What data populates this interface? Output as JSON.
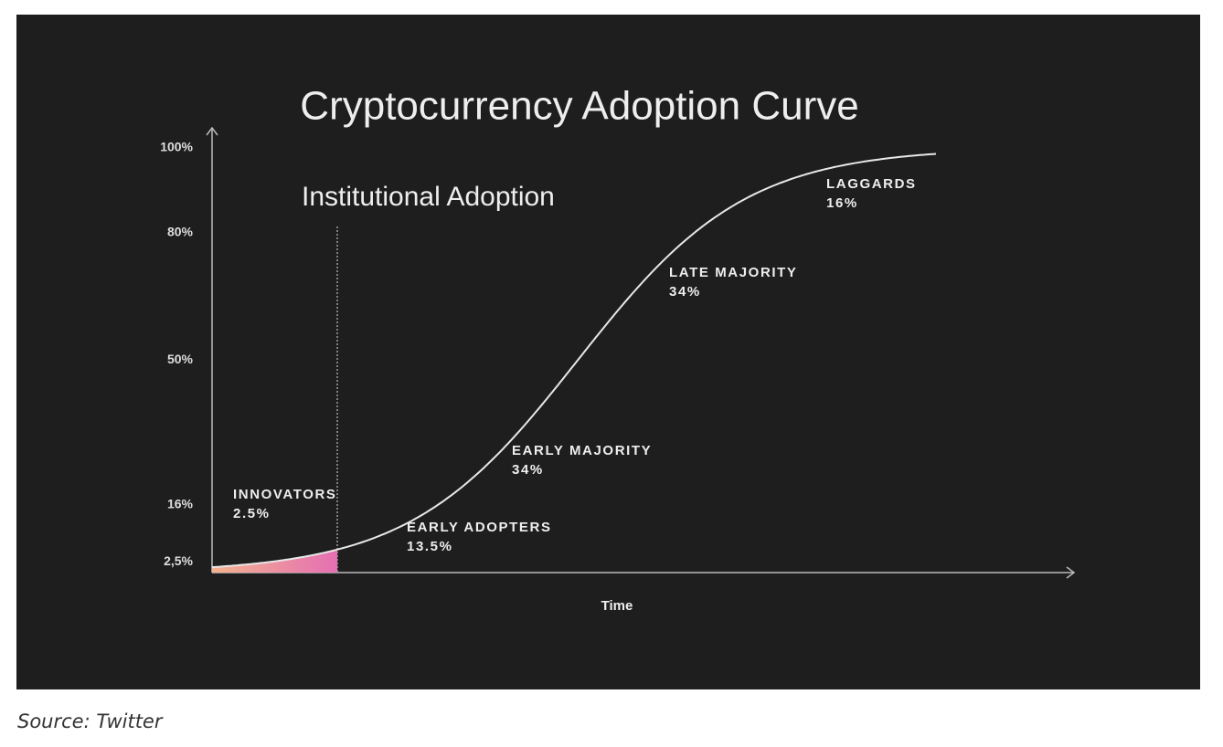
{
  "chart_data": {
    "type": "line",
    "title": "Cryptocurrency Adoption Curve",
    "x_label": "Time",
    "ylim": [
      0,
      100
    ],
    "yticks": [
      {
        "value": 2.5,
        "label": "2,5%"
      },
      {
        "value": 16,
        "label": "16%"
      },
      {
        "value": 50,
        "label": "50%"
      },
      {
        "value": 80,
        "label": "80%"
      },
      {
        "value": 100,
        "label": "100%"
      }
    ],
    "marker_label": "Institutional Adoption",
    "segments": [
      {
        "name": "INNOVATORS",
        "share": "2.5%"
      },
      {
        "name": "EARLY ADOPTERS",
        "share": "13.5%"
      },
      {
        "name": "EARLY MAJORITY",
        "share": "34%"
      },
      {
        "name": "LATE MAJORITY",
        "share": "34%"
      },
      {
        "name": "LAGGARDS",
        "share": "16%"
      }
    ]
  },
  "caption": "Source: Twitter"
}
